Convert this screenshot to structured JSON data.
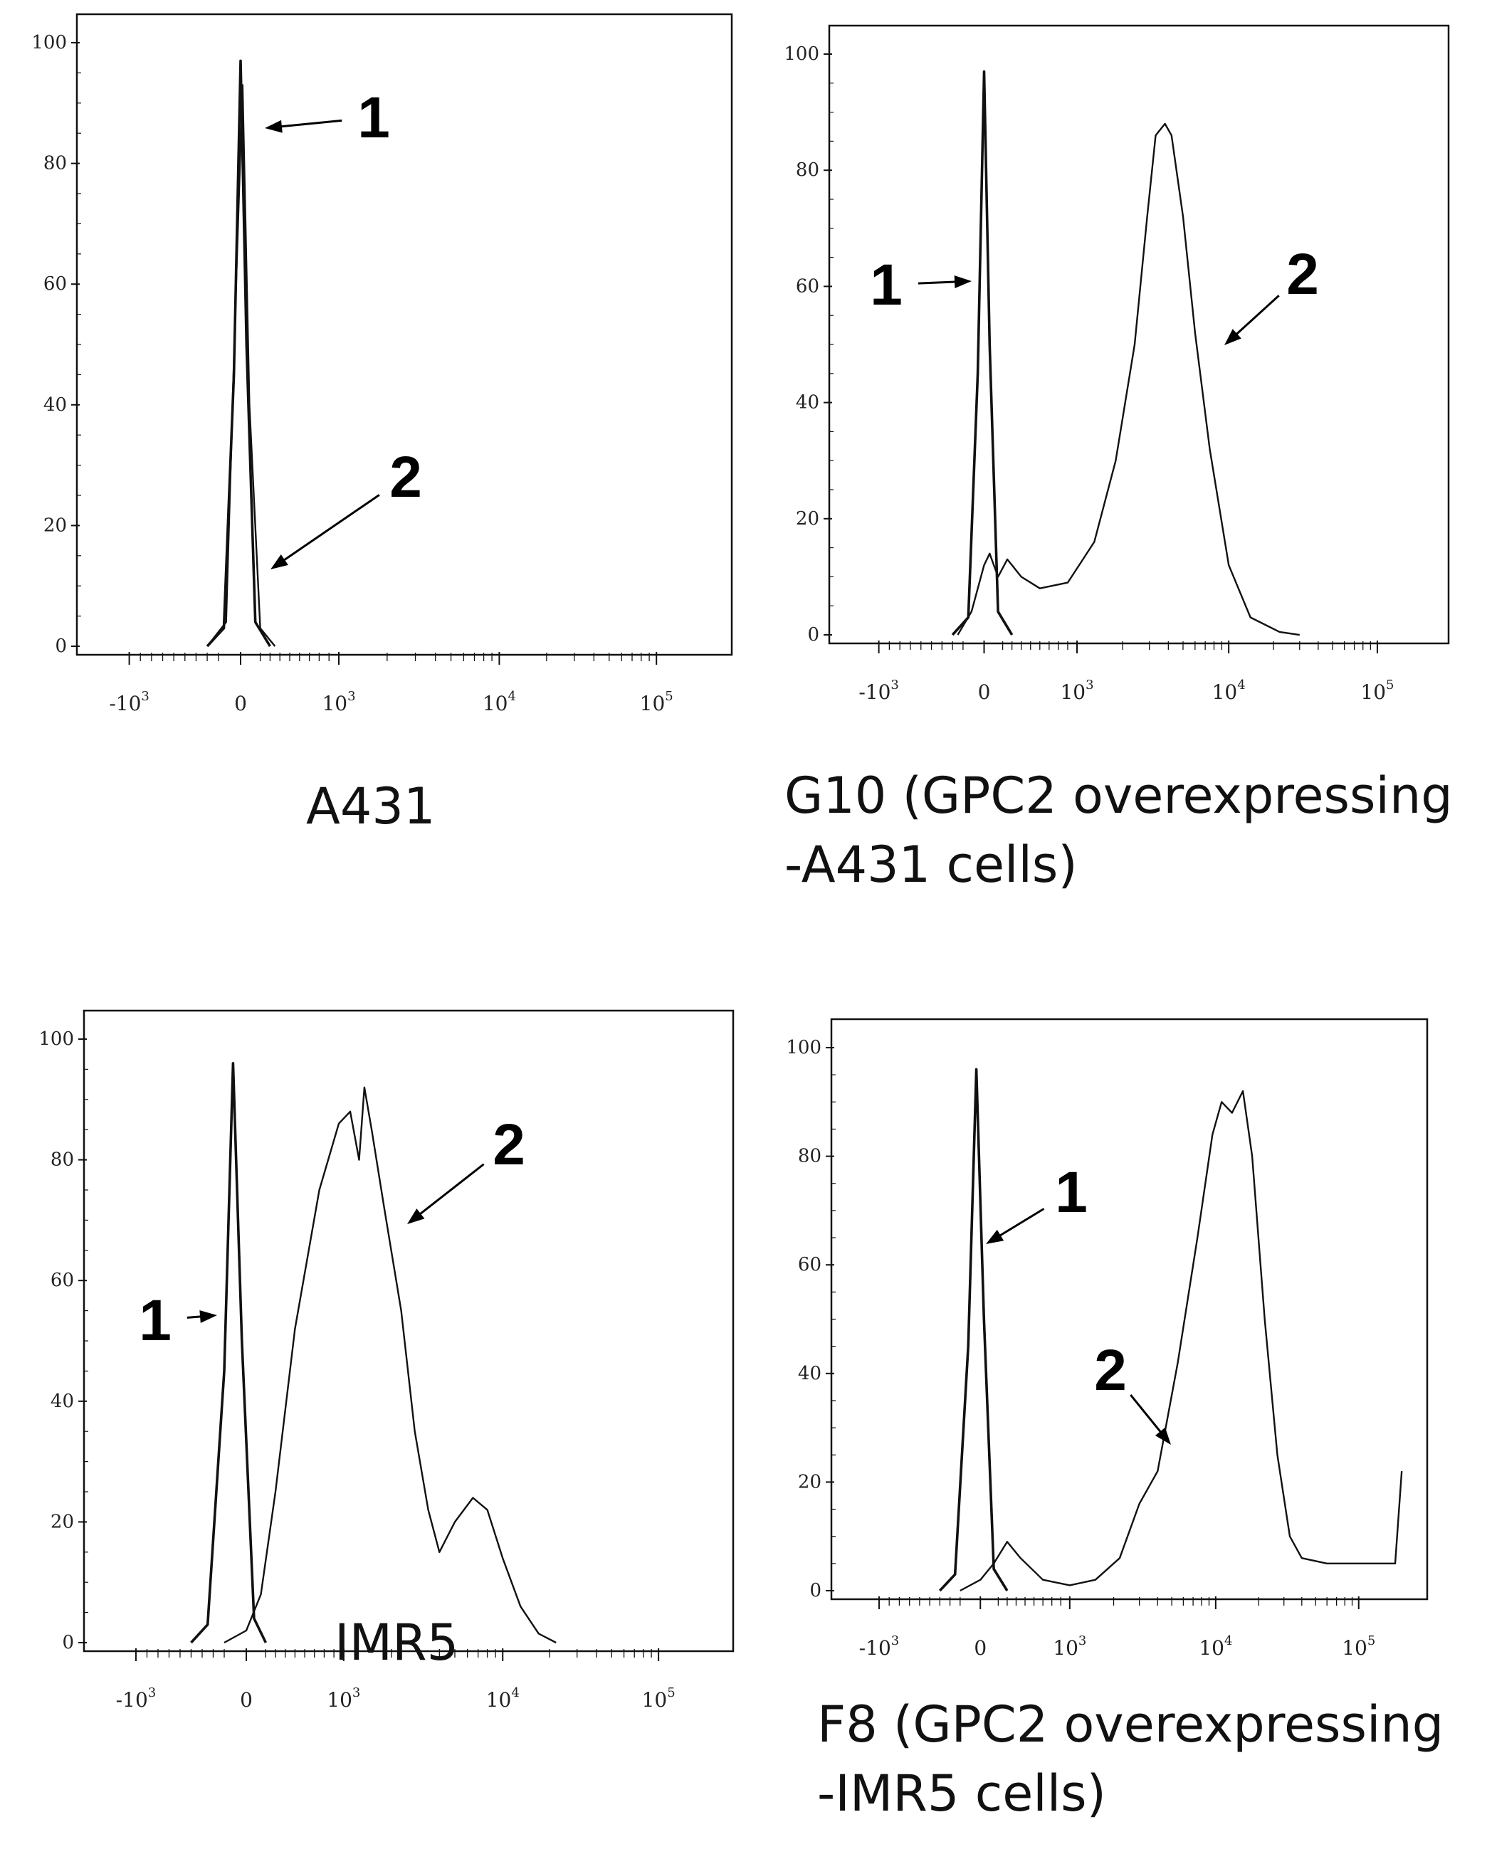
{
  "chart_data": [
    {
      "type": "line",
      "caption": "A431",
      "y_ticks": [
        "0",
        "20",
        "40",
        "60",
        "80",
        "100"
      ],
      "x_ticks": [
        [
          "-10",
          "3"
        ],
        [
          "0",
          ""
        ],
        [
          "10",
          "3"
        ],
        [
          "10",
          "4"
        ],
        [
          "10",
          "5"
        ]
      ],
      "ylim": [
        0,
        100
      ],
      "x_scale": "biexponential",
      "series": [
        {
          "label": "1",
          "points": [
            [
              -300,
              0
            ],
            [
              -150,
              3
            ],
            [
              -60,
              45
            ],
            [
              0,
              97
            ],
            [
              60,
              50
            ],
            [
              150,
              4
            ],
            [
              300,
              0
            ]
          ]
        },
        {
          "label": "2",
          "points": [
            [
              -300,
              0
            ],
            [
              -130,
              4
            ],
            [
              -40,
              60
            ],
            [
              20,
              93
            ],
            [
              90,
              40
            ],
            [
              200,
              3
            ],
            [
              350,
              0
            ]
          ]
        }
      ],
      "callouts": [
        "1",
        "2"
      ]
    },
    {
      "type": "line",
      "caption": "G10 (GPC2 overexpressing\n-A431 cells)",
      "y_ticks": [
        "0",
        "20",
        "40",
        "60",
        "80",
        "100"
      ],
      "x_ticks": [
        [
          "-10",
          "3"
        ],
        [
          "0",
          ""
        ],
        [
          "10",
          "3"
        ],
        [
          "10",
          "4"
        ],
        [
          "10",
          "5"
        ]
      ],
      "ylim": [
        0,
        100
      ],
      "x_scale": "biexponential",
      "series": [
        {
          "label": "1",
          "points": [
            [
              -300,
              0
            ],
            [
              -150,
              3
            ],
            [
              -60,
              45
            ],
            [
              0,
              97
            ],
            [
              60,
              50
            ],
            [
              150,
              4
            ],
            [
              300,
              0
            ]
          ]
        },
        {
          "label": "2",
          "points": [
            [
              -250,
              0
            ],
            [
              -120,
              4
            ],
            [
              0,
              12
            ],
            [
              60,
              14
            ],
            [
              150,
              10
            ],
            [
              250,
              13
            ],
            [
              400,
              10
            ],
            [
              600,
              8
            ],
            [
              900,
              9
            ],
            [
              1300,
              16
            ],
            [
              1800,
              30
            ],
            [
              2400,
              50
            ],
            [
              2900,
              72
            ],
            [
              3300,
              86
            ],
            [
              3800,
              88
            ],
            [
              4200,
              86
            ],
            [
              5000,
              72
            ],
            [
              6000,
              52
            ],
            [
              7500,
              32
            ],
            [
              10000,
              12
            ],
            [
              14000,
              3
            ],
            [
              22000,
              0.5
            ],
            [
              30000,
              0
            ]
          ]
        }
      ],
      "callouts": [
        "1",
        "2"
      ]
    },
    {
      "type": "line",
      "caption": "IMR5",
      "y_ticks": [
        "0",
        "20",
        "40",
        "60",
        "80",
        "100"
      ],
      "x_ticks": [
        [
          "-10",
          "3"
        ],
        [
          "0",
          ""
        ],
        [
          "10",
          "3"
        ],
        [
          "10",
          "4"
        ],
        [
          "10",
          "5"
        ]
      ],
      "ylim": [
        0,
        100
      ],
      "x_scale": "biexponential",
      "series": [
        {
          "label": "1",
          "points": [
            [
              -500,
              0
            ],
            [
              -350,
              3
            ],
            [
              -200,
              45
            ],
            [
              -120,
              96
            ],
            [
              -40,
              50
            ],
            [
              80,
              4
            ],
            [
              200,
              0
            ]
          ]
        },
        {
          "label": "2",
          "points": [
            [
              -200,
              0
            ],
            [
              0,
              2
            ],
            [
              150,
              8
            ],
            [
              300,
              25
            ],
            [
              500,
              52
            ],
            [
              750,
              75
            ],
            [
              950,
              86
            ],
            [
              1100,
              88
            ],
            [
              1250,
              80
            ],
            [
              1350,
              92
            ],
            [
              1500,
              85
            ],
            [
              1800,
              72
            ],
            [
              2300,
              55
            ],
            [
              2800,
              35
            ],
            [
              3400,
              22
            ],
            [
              4000,
              15
            ],
            [
              5000,
              20
            ],
            [
              6500,
              24
            ],
            [
              8000,
              22
            ],
            [
              10000,
              14
            ],
            [
              13000,
              6
            ],
            [
              17000,
              1.5
            ],
            [
              22000,
              0
            ]
          ]
        }
      ],
      "callouts": [
        "1",
        "2"
      ]
    },
    {
      "type": "line",
      "caption": "F8 (GPC2 overexpressing\n-IMR5 cells)",
      "y_ticks": [
        "0",
        "20",
        "40",
        "60",
        "80",
        "100"
      ],
      "x_ticks": [
        [
          "-10",
          "3"
        ],
        [
          "0",
          ""
        ],
        [
          "10",
          "3"
        ],
        [
          "10",
          "4"
        ],
        [
          "10",
          "5"
        ]
      ],
      "ylim": [
        0,
        100
      ],
      "x_scale": "biexponential",
      "series": [
        {
          "label": "1",
          "points": [
            [
              -400,
              0
            ],
            [
              -250,
              3
            ],
            [
              -120,
              45
            ],
            [
              -40,
              96
            ],
            [
              40,
              50
            ],
            [
              150,
              4
            ],
            [
              300,
              0
            ]
          ]
        },
        {
          "label": "2",
          "points": [
            [
              -200,
              0
            ],
            [
              0,
              2
            ],
            [
              150,
              5
            ],
            [
              300,
              9
            ],
            [
              450,
              6
            ],
            [
              700,
              2
            ],
            [
              1000,
              1
            ],
            [
              1500,
              2
            ],
            [
              2200,
              6
            ],
            [
              3000,
              16
            ],
            [
              4000,
              22
            ],
            [
              5500,
              42
            ],
            [
              7500,
              65
            ],
            [
              9500,
              84
            ],
            [
              11000,
              90
            ],
            [
              13000,
              88
            ],
            [
              15500,
              92
            ],
            [
              18000,
              80
            ],
            [
              22000,
              50
            ],
            [
              27000,
              25
            ],
            [
              33000,
              10
            ],
            [
              40000,
              6
            ],
            [
              60000,
              5
            ],
            [
              90000,
              5
            ],
            [
              130000,
              5
            ],
            [
              180000,
              5
            ],
            [
              200000,
              22
            ]
          ]
        }
      ],
      "callouts": [
        "1",
        "2"
      ]
    }
  ]
}
